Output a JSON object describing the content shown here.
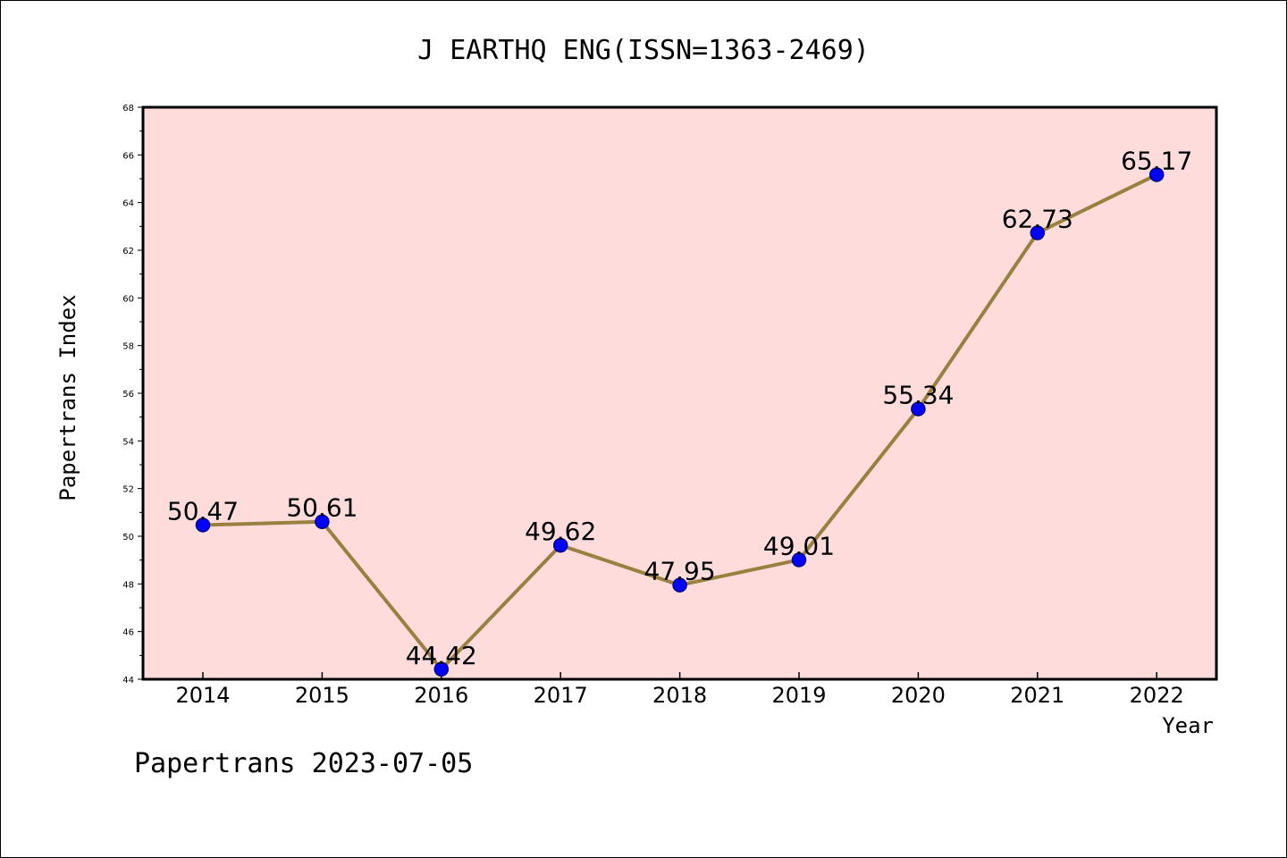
{
  "chart_data": {
    "type": "line",
    "title": "J EARTHQ ENG(ISSN=1363-2469)",
    "xlabel": "Year",
    "ylabel": "Papertrans Index",
    "x": [
      "2014",
      "2015",
      "2016",
      "2017",
      "2018",
      "2019",
      "2020",
      "2021",
      "2022"
    ],
    "series": [
      {
        "values": [
          50.47,
          50.61,
          44.42,
          49.62,
          47.95,
          49.01,
          55.34,
          62.73,
          65.17
        ],
        "labels": [
          "50.47",
          "50.61",
          "44.42",
          "49.62",
          "47.95",
          "49.01",
          "55.34",
          "62.73",
          "65.17"
        ]
      }
    ],
    "ylim": [
      44,
      68
    ],
    "yticks": [
      "44",
      "46",
      "48",
      "50",
      "52",
      "54",
      "56",
      "58",
      "60",
      "62",
      "64",
      "66",
      "68"
    ],
    "grid": false,
    "legend": "none",
    "colors": {
      "plot_background": "#ffdcdc",
      "line": "#9a8040",
      "marker_fill": "#0000ff",
      "marker_edge": "#000080"
    }
  },
  "footer": {
    "text": "Papertrans 2023-07-05"
  }
}
